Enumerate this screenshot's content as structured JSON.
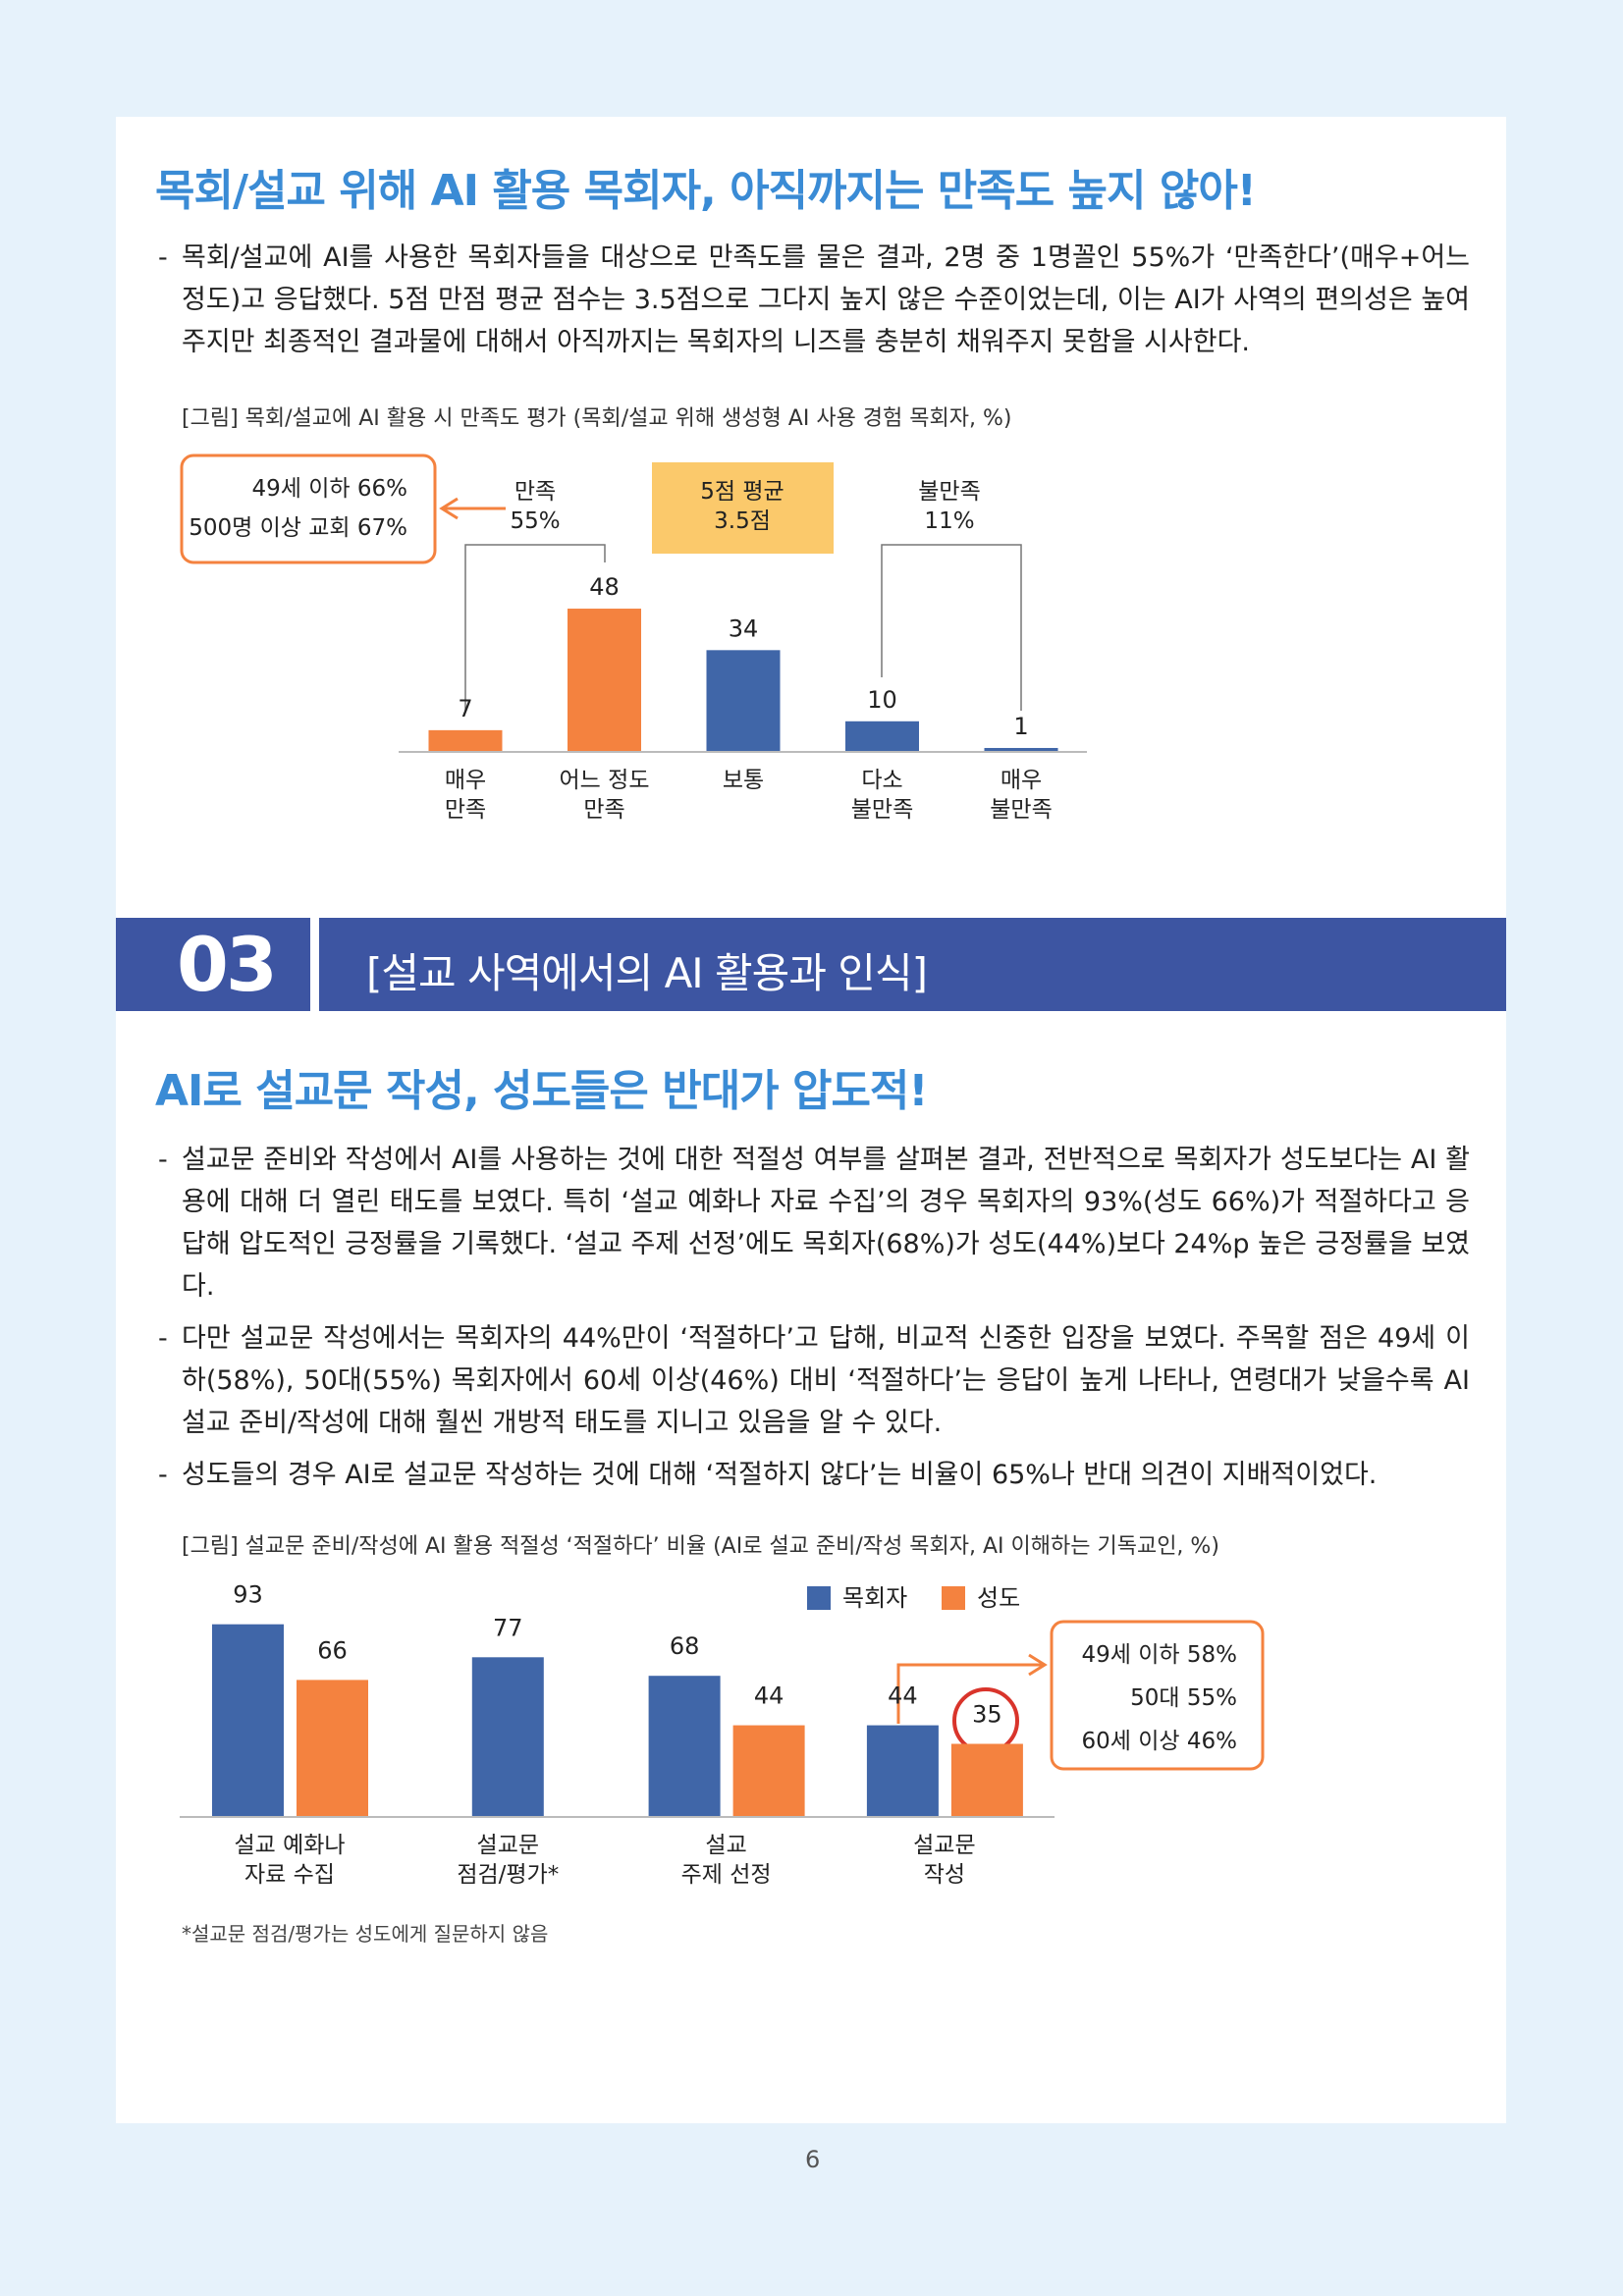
{
  "section1": {
    "title": "목회/설교 위해 AI 활용 목회자, 아직까지는 만족도 높지 않아!",
    "bullets": [
      "목회/설교에 AI를 사용한 목회자들을 대상으로 만족도를 물은 결과, 2명 중 1명꼴인 55%가 ‘만족한다’(매우+어느 정도)고 응답했다. 5점 만점 평균 점수는 3.5점으로 그다지 높지 않은 수준이었는데, 이는 AI가 사역의 편의성은 높여주지만 최종적인 결과물에 대해서 아직까지는 목회자의 니즈를 충분히 채워주지 못함을 시사한다."
    ]
  },
  "section_header": {
    "number": "03",
    "title": "[설교 사역에서의 AI 활용과 인식]"
  },
  "section2": {
    "title": "AI로 설교문 작성, 성도들은 반대가 압도적!",
    "bullets": [
      "설교문 준비와 작성에서 AI를 사용하는 것에 대한 적절성 여부를 살펴본 결과, 전반적으로 목회자가 성도보다는 AI 활용에 대해 더 열린 태도를 보였다. 특히 ‘설교 예화나 자료 수집’의 경우 목회자의 93%(성도 66%)가 적절하다고 응답해 압도적인 긍정률을 기록했다. ‘설교 주제 선정’에도 목회자(68%)가 성도(44%)보다 24%p 높은 긍정률을 보였다.",
      "다만 설교문 작성에서는 목회자의 44%만이 ‘적절하다’고 답해, 비교적 신중한 입장을 보였다. 주목할 점은 49세 이하(58%), 50대(55%) 목회자에서 60세 이상(46%) 대비 ‘적절하다’는 응답이 높게 나타나, 연령대가 낮을수록 AI 설교 준비/작성에 대해 훨씬 개방적 태도를 지니고 있음을 알 수 있다.",
      "성도들의 경우 AI로 설교문 작성하는 것에 대해 ‘적절하지 않다’는 비율이 65%나 반대 의견이 지배적이었다."
    ]
  },
  "chart_data": [
    {
      "type": "bar",
      "title": "[그림] 목회/설교에 AI 활용 시 만족도 평가 (목회/설교 위해 생성형 AI 사용 경험 목회자, %)",
      "categories": [
        "매우\n만족",
        "어느 정도\n만족",
        "보통",
        "다소\n불만족",
        "매우\n불만족"
      ],
      "values": [
        7,
        48,
        34,
        10,
        1
      ],
      "colors": [
        "#f4823f",
        "#f4823f",
        "#4066a8",
        "#4066a8",
        "#4066a8"
      ],
      "annotations": {
        "satisfied": "만족\n55%",
        "average": "5점 평균\n3.5점",
        "dissatisfied": "불만족\n11%",
        "callout": "49세 이하 66%\n500명 이상 교회 67%"
      }
    },
    {
      "type": "grouped_bar",
      "title": "[그림] 설교문 준비/작성에 AI 활용 적절성 ‘적절하다’ 비율 (AI로 설교 준비/작성 목회자, AI 이해하는 기독교인, %)",
      "categories": [
        "설교 예화나\n자료 수집",
        "설교문\n점검/평가*",
        "설교\n주제 선정",
        "설교문\n작성"
      ],
      "series": [
        {
          "name": "목회자",
          "color": "#4066a8",
          "values": [
            93,
            77,
            68,
            44
          ]
        },
        {
          "name": "성도",
          "color": "#f4823f",
          "values": [
            66,
            null,
            44,
            35
          ]
        }
      ],
      "annotations": {
        "callout": "49세 이하 58%\n50대 55%\n60세 이상 46%"
      },
      "footnote": "*설교문 점검/평가는 성도에게 질문하지 않음"
    }
  ],
  "page_number": "6"
}
